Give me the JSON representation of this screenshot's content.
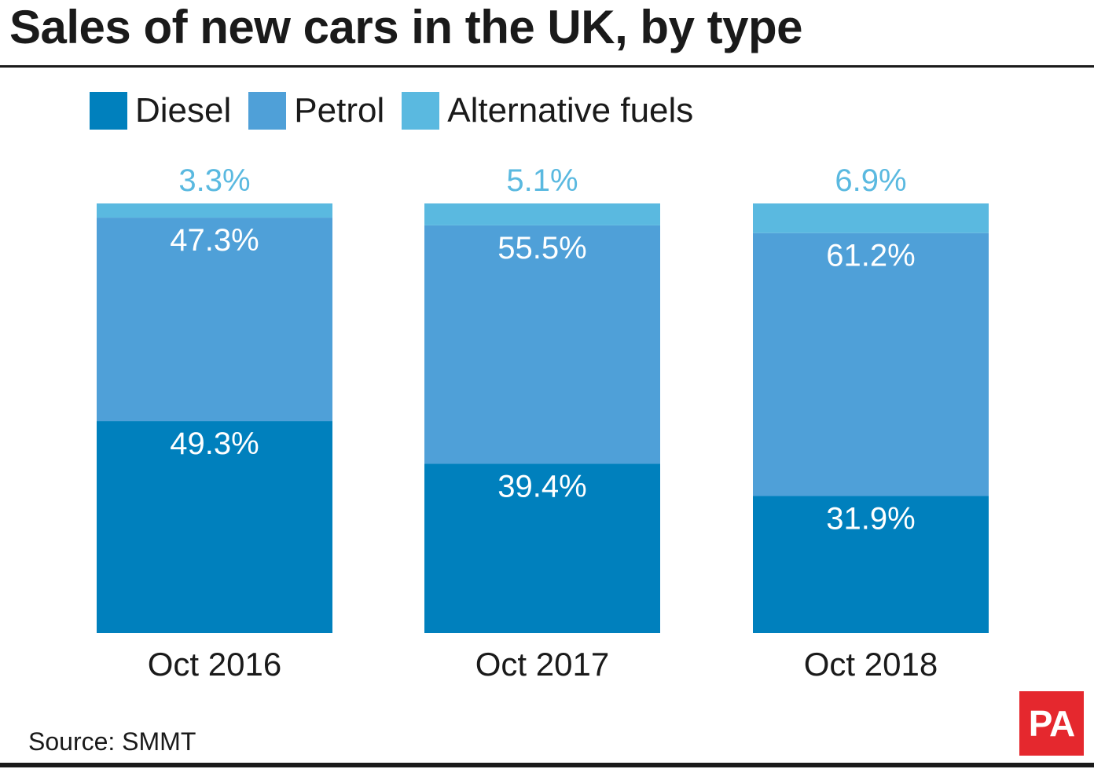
{
  "colors": {
    "diesel": "#0080bd",
    "petrol": "#4fa0d8",
    "alternative": "#5ab9e0",
    "text": "#1a1a1a",
    "logo_bg": "#e5282e"
  },
  "source_text": "Source: SMMT",
  "logo_text": "PA",
  "chart_data": {
    "type": "bar",
    "stacked": true,
    "title": "Sales of new cars in the UK, by type",
    "legend_position": "top-left",
    "grid": false,
    "ylim": [
      0,
      100
    ],
    "categories": [
      "Oct 2016",
      "Oct 2017",
      "Oct 2018"
    ],
    "series": [
      {
        "name": "Diesel",
        "color": "#0080bd",
        "values": [
          49.3,
          39.4,
          31.9
        ],
        "labels": [
          "49.3%",
          "39.4%",
          "31.9%"
        ]
      },
      {
        "name": "Petrol",
        "color": "#4fa0d8",
        "values": [
          47.3,
          55.5,
          61.2
        ],
        "labels": [
          "47.3%",
          "55.5%",
          "61.2%"
        ]
      },
      {
        "name": "Alternative fuels",
        "color": "#5ab9e0",
        "values": [
          3.3,
          5.1,
          6.9
        ],
        "labels": [
          "3.3%",
          "5.1%",
          "6.9%"
        ]
      }
    ]
  }
}
